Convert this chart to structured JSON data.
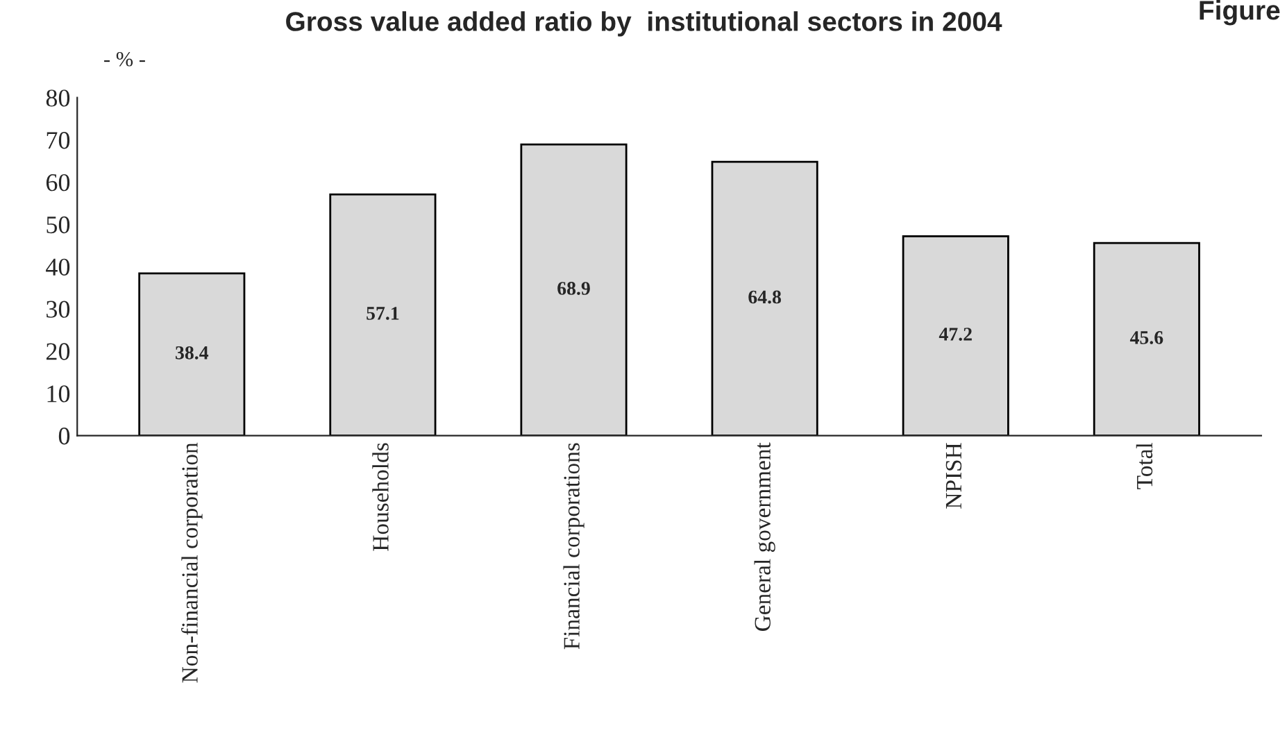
{
  "chart_data": {
    "type": "bar",
    "title": "Gross value added ratio by  institutional sectors in 2004",
    "ylabel": "- % -",
    "annotations": [
      "Figure"
    ],
    "categories": [
      "Non-financial corporation",
      "Households",
      "Financial corporations",
      "General government",
      "NPISH",
      "Total"
    ],
    "values": [
      38.4,
      57.1,
      68.9,
      64.8,
      47.2,
      45.6
    ],
    "color": "#d9d9d9",
    "ylim": [
      0,
      80
    ],
    "yticks": [
      0,
      10,
      20,
      30,
      40,
      50,
      60,
      70,
      80
    ],
    "data_labels": true,
    "grid": false,
    "legend": false
  }
}
